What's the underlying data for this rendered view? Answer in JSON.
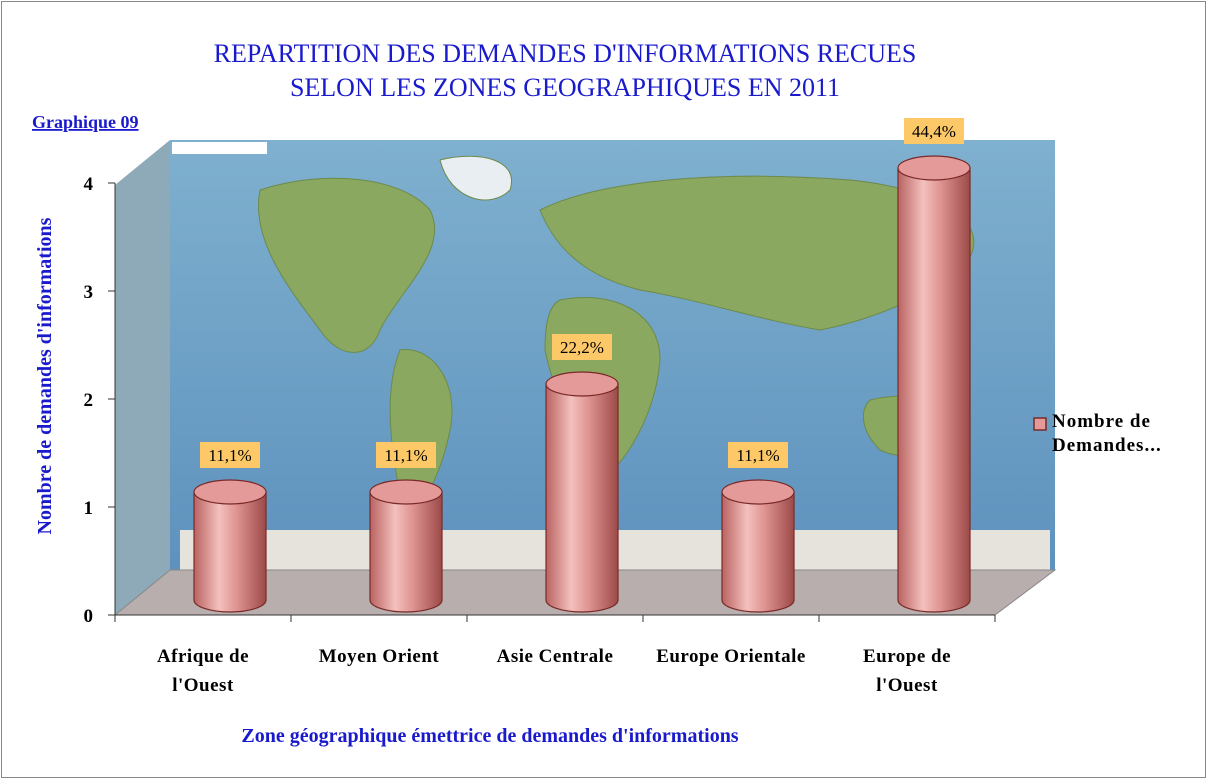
{
  "chart_data": {
    "type": "bar",
    "title": [
      "REPARTITION DES DEMANDES D'INFORMATIONS RECUES",
      "SELON LES ZONES GEOGRAPHIQUES EN 2011"
    ],
    "subtitle": "Graphique 09",
    "x_label": "Zone géographique émettrice de demandes d'informations",
    "y_label": "Nombre de demandes d'informations",
    "categories": [
      "Afrique de l'Ouest",
      "Moyen Orient",
      "Asie Centrale",
      "Europe Orientale",
      "Europe de l'Ouest"
    ],
    "series": [
      {
        "name": "Nombre de Demandes...",
        "color": "#e49a98",
        "values": [
          1,
          1,
          2,
          1,
          4
        ],
        "value_labels": [
          "11,1%",
          "11,1%",
          "22,2%",
          "11,1%",
          "44,4%"
        ]
      }
    ],
    "ylim": [
      0,
      4
    ],
    "yticks": [
      0,
      1,
      2,
      3,
      4
    ],
    "legend": "right"
  }
}
